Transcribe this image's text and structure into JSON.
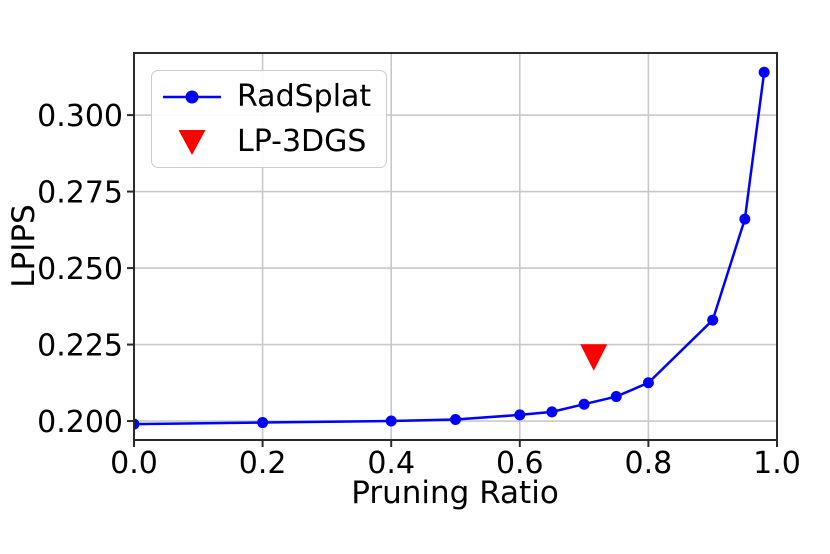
{
  "figure": {
    "background": "#ffffff"
  },
  "chart_data": {
    "type": "line",
    "title": "",
    "xlabel": "Pruning Ratio",
    "ylabel": "LPIPS",
    "xlim": [
      0.0,
      1.0
    ],
    "ylim": [
      0.1938,
      0.3203
    ],
    "x_ticks": [
      0.0,
      0.2,
      0.4,
      0.6,
      0.8,
      1.0
    ],
    "x_tick_labels": [
      "0.0",
      "0.2",
      "0.4",
      "0.6",
      "0.8",
      "1.0"
    ],
    "y_ticks": [
      0.2,
      0.225,
      0.25,
      0.275,
      0.3
    ],
    "y_tick_labels": [
      "0.200",
      "0.225",
      "0.250",
      "0.275",
      "0.300"
    ],
    "grid": true,
    "grid_color": "#c8c8c8",
    "spine_color": "#2b2b2b",
    "legend_position": "upper-left",
    "series": [
      {
        "name": "RadSplat",
        "type": "line",
        "color": "#0000ff",
        "marker": "circle",
        "x": [
          0.0,
          0.2,
          0.4,
          0.5,
          0.6,
          0.65,
          0.7,
          0.75,
          0.8,
          0.9,
          0.95,
          0.98
        ],
        "y": [
          0.199,
          0.1995,
          0.2,
          0.2005,
          0.202,
          0.203,
          0.2055,
          0.208,
          0.2125,
          0.233,
          0.266,
          0.314
        ]
      },
      {
        "name": "LP-3DGS",
        "type": "scatter",
        "color": "#ff0000",
        "marker": "triangle-down",
        "x": [
          0.715
        ],
        "y": [
          0.221
        ]
      }
    ]
  }
}
